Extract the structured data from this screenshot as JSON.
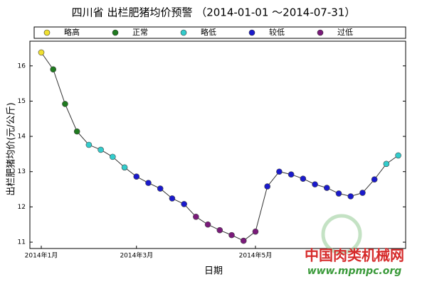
{
  "chart_data": {
    "type": "line",
    "title": "四川省 出栏肥猪均价预警 （2014-01-01 ～2014-07-31）",
    "x_label": "日期",
    "y_label": "出栏肥猪均价(元/公斤)",
    "categories": [
      "2014年1月",
      null,
      null,
      null,
      null,
      null,
      null,
      null,
      "2014年3月",
      null,
      null,
      null,
      null,
      null,
      null,
      null,
      null,
      null,
      "2014年5月",
      null,
      null,
      null,
      null,
      null,
      null,
      null,
      null,
      null,
      null,
      null,
      null
    ],
    "series": [
      {
        "name": "出栏肥猪均价",
        "color": "#333333",
        "values": [
          16.38,
          15.9,
          14.92,
          14.14,
          13.76,
          13.62,
          13.42,
          13.12,
          12.86,
          12.68,
          12.52,
          12.24,
          12.08,
          11.72,
          11.5,
          11.34,
          11.2,
          11.04,
          11.3,
          12.58,
          13.0,
          12.92,
          12.8,
          12.64,
          12.54,
          12.38,
          12.3,
          12.4,
          12.78,
          13.22,
          13.46
        ]
      }
    ],
    "point_colors": [
      "#f0e030",
      "#1f7a1f",
      "#1f7a1f",
      "#1f7a1f",
      "#33cccc",
      "#33cccc",
      "#33cccc",
      "#33cccc",
      "#1a1acc",
      "#1a1acc",
      "#1a1acc",
      "#1a1acc",
      "#1a1acc",
      "#7a1a7a",
      "#7a1a7a",
      "#7a1a7a",
      "#7a1a7a",
      "#7a1a7a",
      "#7a1a7a",
      "#1a1acc",
      "#1a1acc",
      "#1a1acc",
      "#1a1acc",
      "#1a1acc",
      "#1a1acc",
      "#1a1acc",
      "#1a1acc",
      "#1a1acc",
      "#1a1acc",
      "#33cccc",
      "#33cccc"
    ],
    "legend": [
      {
        "name": "略高",
        "color": "#f0e030"
      },
      {
        "name": "正常",
        "color": "#1f7a1f"
      },
      {
        "name": "略低",
        "color": "#33cccc"
      },
      {
        "name": "较低",
        "color": "#1a1acc"
      },
      {
        "name": "过低",
        "color": "#7a1a7a"
      }
    ],
    "ylim": [
      10.82,
      16.7
    ],
    "yticks": [
      11,
      12,
      13,
      14,
      15,
      16
    ],
    "watermark": [
      "中国肉类机械网",
      "www.mpmpc.org"
    ]
  }
}
